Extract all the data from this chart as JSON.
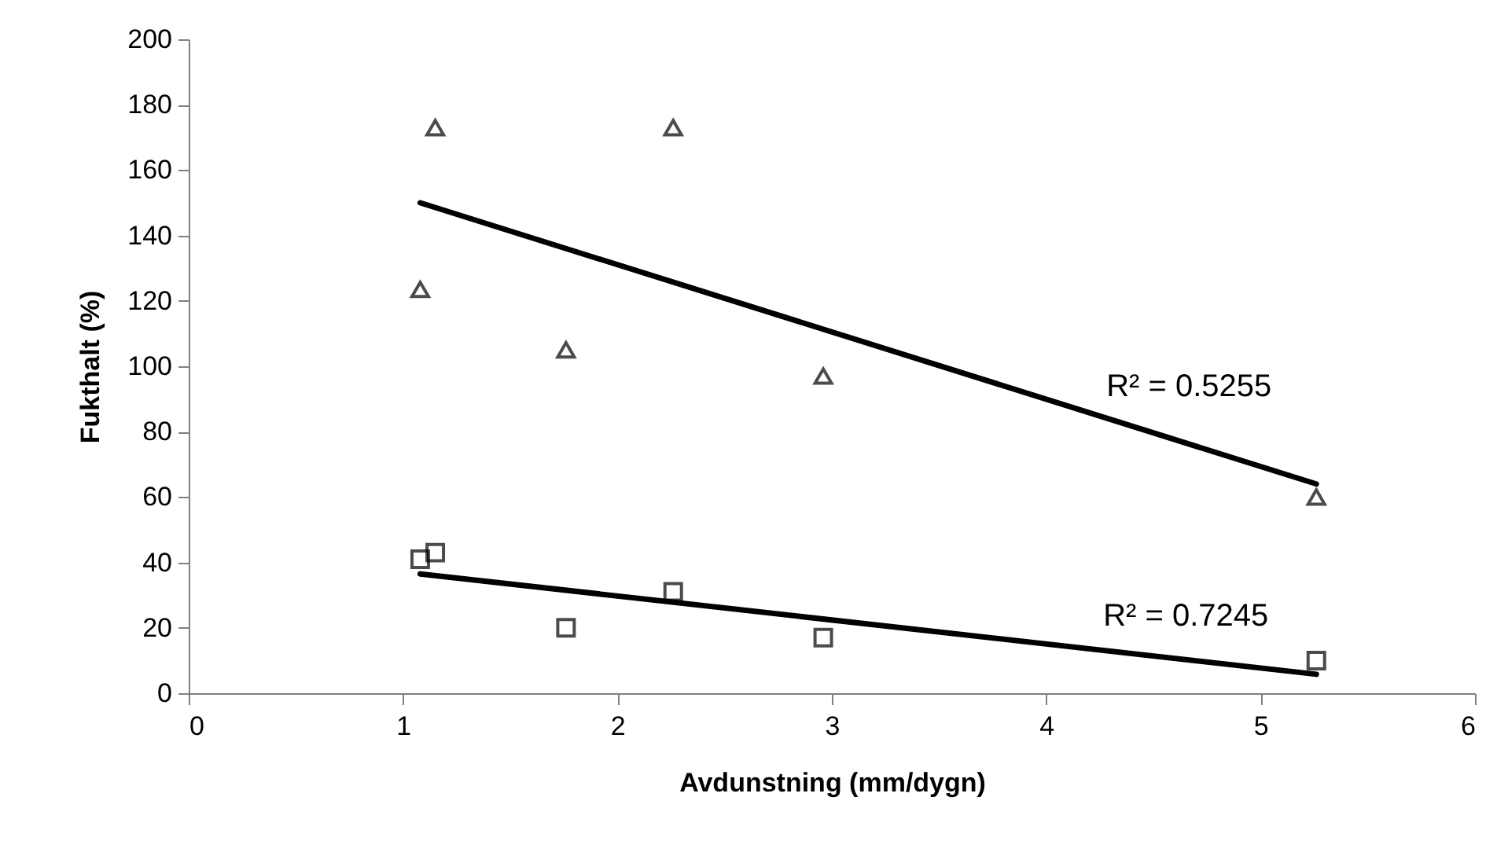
{
  "chart_data": {
    "type": "scatter",
    "xlabel": "Avdunstning (mm/dygn)",
    "ylabel": "Fukthalt (%)",
    "xlim": [
      0,
      6
    ],
    "xticks": [
      0,
      1,
      2,
      3,
      4,
      5,
      6
    ],
    "ylim": [
      0,
      200
    ],
    "yticks": [
      0,
      20,
      40,
      60,
      80,
      100,
      120,
      140,
      160,
      180,
      200
    ],
    "grid": false,
    "series": [
      {
        "marker": "triangle",
        "color": "#000000",
        "x": [
          1.08,
          1.15,
          1.76,
          2.26,
          2.96,
          5.26
        ],
        "values": [
          123.5,
          173,
          105,
          173,
          97,
          60
        ]
      },
      {
        "marker": "square",
        "color": "#000000",
        "x": [
          1.08,
          1.15,
          1.76,
          2.26,
          2.96,
          5.26
        ],
        "values": [
          41,
          43,
          20,
          31,
          17,
          10
        ]
      },
      {
        "type": "line",
        "color": "#000000",
        "x": [
          1.08,
          5.26
        ],
        "values": [
          150,
          64
        ]
      },
      {
        "type": "line",
        "color": "#000000",
        "x": [
          1.08,
          5.26
        ],
        "values": [
          36.5,
          5.8
        ]
      }
    ],
    "annotations": [
      "R² = 0.5255",
      "R² = 0.7245"
    ]
  }
}
